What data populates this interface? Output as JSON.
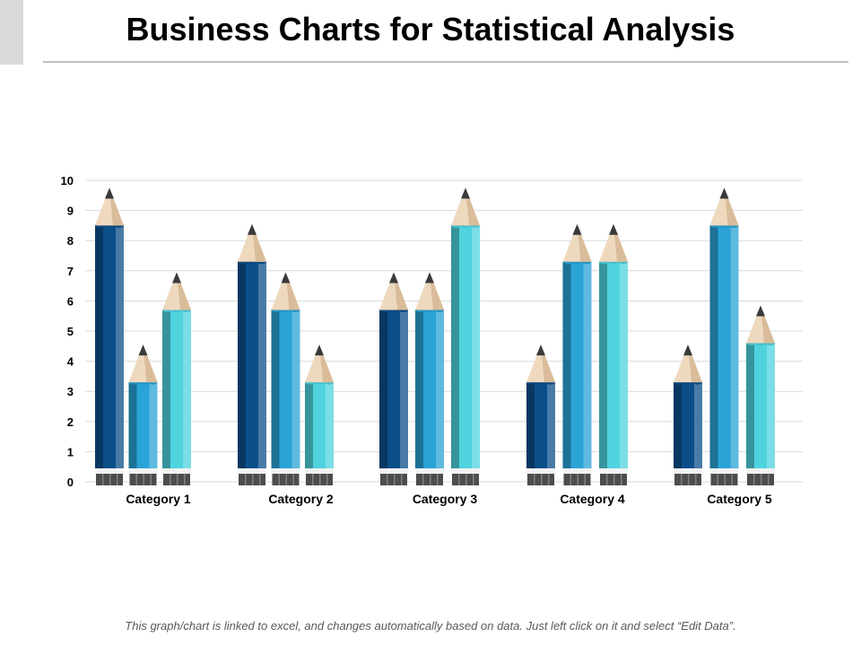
{
  "page": {
    "title": "Business Charts for Statistical Analysis",
    "footnote": "This graph/chart is linked to excel, and changes automatically based on data.  Just left click on it and select “Edit Data”."
  },
  "chart_data": {
    "type": "bar",
    "style": "pencil",
    "categories": [
      "Category 1",
      "Category 2",
      "Category 3",
      "Category 4",
      "Category 5"
    ],
    "series": [
      {
        "color": "#0b4f8a",
        "values": [
          8.5,
          7.3,
          5.7,
          3.3,
          3.3
        ]
      },
      {
        "color": "#2aa3d6",
        "values": [
          3.3,
          5.7,
          5.7,
          7.3,
          8.5
        ]
      },
      {
        "color": "#4fd3df",
        "values": [
          5.7,
          3.3,
          8.5,
          7.3,
          4.6
        ]
      }
    ],
    "ylim": [
      0,
      10
    ],
    "yticks": [
      "0",
      "1",
      "2",
      "3",
      "4",
      "5",
      "6",
      "7",
      "8",
      "9",
      "10"
    ],
    "grid": true,
    "legend": "none"
  }
}
